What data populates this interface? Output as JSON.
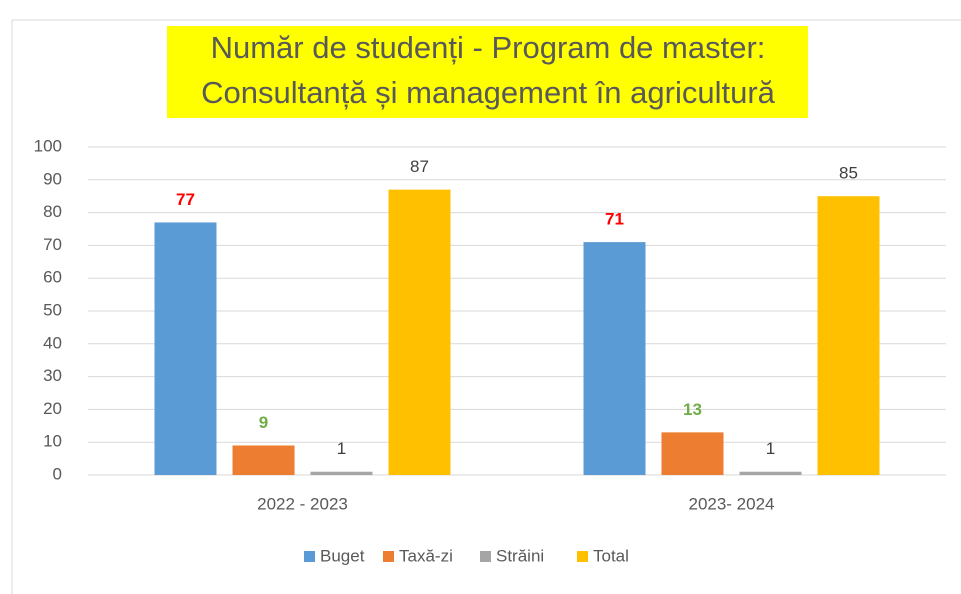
{
  "chart_data": {
    "type": "bar",
    "title": [
      "Număr de studenți - Program de master:",
      "Consultanță și management în agricultură"
    ],
    "categories": [
      "2022 - 2023",
      "2023- 2024"
    ],
    "series": [
      {
        "name": "Buget",
        "color": "#5b9bd5",
        "label_color": "#ff0000",
        "label_bold": true,
        "values": [
          77,
          71
        ]
      },
      {
        "name": "Taxă-zi",
        "color": "#ed7d31",
        "label_color": "#70ad47",
        "label_bold": true,
        "values": [
          9,
          13
        ]
      },
      {
        "name": "Străini",
        "color": "#a5a5a5",
        "label_color": "#404040",
        "label_bold": false,
        "values": [
          1,
          1
        ]
      },
      {
        "name": "Total",
        "color": "#ffc000",
        "label_color": "#404040",
        "label_bold": false,
        "values": [
          87,
          85
        ]
      }
    ],
    "ylim": [
      0,
      100
    ],
    "yticks": [
      0,
      10,
      20,
      30,
      40,
      50,
      60,
      70,
      80,
      90,
      100
    ],
    "grid": true,
    "legend": "bottom"
  }
}
